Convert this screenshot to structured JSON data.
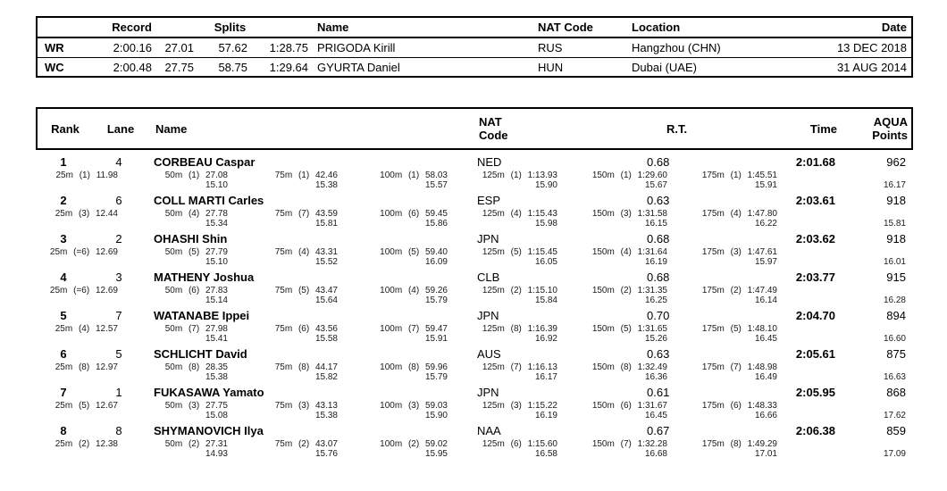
{
  "colors": {
    "background": "#ffffff",
    "text": "#000000",
    "border": "#000000"
  },
  "records_table": {
    "headers": {
      "record": "Record",
      "splits": "Splits",
      "name": "Name",
      "nat_code": "NAT Code",
      "location": "Location",
      "date": "Date"
    },
    "rows": [
      {
        "tag": "WR",
        "record": "2:00.16",
        "splits": [
          "27.01",
          "57.62",
          "1:28.75"
        ],
        "name": "PRIGODA Kirill",
        "nat_code": "RUS",
        "location": "Hangzhou (CHN)",
        "date": "13 DEC 2018"
      },
      {
        "tag": "WC",
        "record": "2:00.48",
        "splits": [
          "27.75",
          "58.75",
          "1:29.64"
        ],
        "name": "GYURTA Daniel",
        "nat_code": "HUN",
        "location": "Dubai (UAE)",
        "date": "31 AUG 2014"
      }
    ]
  },
  "results_table": {
    "headers": {
      "rank": "Rank",
      "lane": "Lane",
      "name": "Name",
      "nat_code": [
        "NAT",
        "Code"
      ],
      "rt": "R.T.",
      "time": "Time",
      "points": [
        "AQUA",
        "Points"
      ]
    },
    "rows": [
      {
        "rank": "1",
        "lane": "4",
        "name": "CORBEAU Caspar",
        "nat_code": "NED",
        "rt": "0.68",
        "time": "2:01.68",
        "points": "962",
        "splits": [
          {
            "dist": "25m",
            "pos": "(1)",
            "cum": "11.98",
            "lap": ""
          },
          {
            "dist": "50m",
            "pos": "(1)",
            "cum": "27.08",
            "lap": "15.10"
          },
          {
            "dist": "75m",
            "pos": "(1)",
            "cum": "42.46",
            "lap": "15.38"
          },
          {
            "dist": "100m",
            "pos": "(1)",
            "cum": "58.03",
            "lap": "15.57"
          },
          {
            "dist": "125m",
            "pos": "(1)",
            "cum": "1:13.93",
            "lap": "15.90"
          },
          {
            "dist": "150m",
            "pos": "(1)",
            "cum": "1:29.60",
            "lap": "15.67"
          },
          {
            "dist": "175m",
            "pos": "(1)",
            "cum": "1:45.51",
            "lap": "15.91"
          }
        ],
        "last_lap": "16.17"
      },
      {
        "rank": "2",
        "lane": "6",
        "name": "COLL MARTI Carles",
        "nat_code": "ESP",
        "rt": "0.63",
        "time": "2:03.61",
        "points": "918",
        "splits": [
          {
            "dist": "25m",
            "pos": "(3)",
            "cum": "12.44",
            "lap": ""
          },
          {
            "dist": "50m",
            "pos": "(4)",
            "cum": "27.78",
            "lap": "15.34"
          },
          {
            "dist": "75m",
            "pos": "(7)",
            "cum": "43.59",
            "lap": "15.81"
          },
          {
            "dist": "100m",
            "pos": "(6)",
            "cum": "59.45",
            "lap": "15.86"
          },
          {
            "dist": "125m",
            "pos": "(4)",
            "cum": "1:15.43",
            "lap": "15.98"
          },
          {
            "dist": "150m",
            "pos": "(3)",
            "cum": "1:31.58",
            "lap": "16.15"
          },
          {
            "dist": "175m",
            "pos": "(4)",
            "cum": "1:47.80",
            "lap": "16.22"
          }
        ],
        "last_lap": "15.81"
      },
      {
        "rank": "3",
        "lane": "2",
        "name": "OHASHI Shin",
        "nat_code": "JPN",
        "rt": "0.68",
        "time": "2:03.62",
        "points": "918",
        "splits": [
          {
            "dist": "25m",
            "pos": "(=6)",
            "cum": "12.69",
            "lap": ""
          },
          {
            "dist": "50m",
            "pos": "(5)",
            "cum": "27.79",
            "lap": "15.10"
          },
          {
            "dist": "75m",
            "pos": "(4)",
            "cum": "43.31",
            "lap": "15.52"
          },
          {
            "dist": "100m",
            "pos": "(5)",
            "cum": "59.40",
            "lap": "16.09"
          },
          {
            "dist": "125m",
            "pos": "(5)",
            "cum": "1:15.45",
            "lap": "16.05"
          },
          {
            "dist": "150m",
            "pos": "(4)",
            "cum": "1:31.64",
            "lap": "16.19"
          },
          {
            "dist": "175m",
            "pos": "(3)",
            "cum": "1:47.61",
            "lap": "15.97"
          }
        ],
        "last_lap": "16.01"
      },
      {
        "rank": "4",
        "lane": "3",
        "name": "MATHENY Joshua",
        "nat_code": "CLB",
        "rt": "0.68",
        "time": "2:03.77",
        "points": "915",
        "splits": [
          {
            "dist": "25m",
            "pos": "(=6)",
            "cum": "12.69",
            "lap": ""
          },
          {
            "dist": "50m",
            "pos": "(6)",
            "cum": "27.83",
            "lap": "15.14"
          },
          {
            "dist": "75m",
            "pos": "(5)",
            "cum": "43.47",
            "lap": "15.64"
          },
          {
            "dist": "100m",
            "pos": "(4)",
            "cum": "59.26",
            "lap": "15.79"
          },
          {
            "dist": "125m",
            "pos": "(2)",
            "cum": "1:15.10",
            "lap": "15.84"
          },
          {
            "dist": "150m",
            "pos": "(2)",
            "cum": "1:31.35",
            "lap": "16.25"
          },
          {
            "dist": "175m",
            "pos": "(2)",
            "cum": "1:47.49",
            "lap": "16.14"
          }
        ],
        "last_lap": "16.28"
      },
      {
        "rank": "5",
        "lane": "7",
        "name": "WATANABE Ippei",
        "nat_code": "JPN",
        "rt": "0.70",
        "time": "2:04.70",
        "points": "894",
        "splits": [
          {
            "dist": "25m",
            "pos": "(4)",
            "cum": "12.57",
            "lap": ""
          },
          {
            "dist": "50m",
            "pos": "(7)",
            "cum": "27.98",
            "lap": "15.41"
          },
          {
            "dist": "75m",
            "pos": "(6)",
            "cum": "43.56",
            "lap": "15.58"
          },
          {
            "dist": "100m",
            "pos": "(7)",
            "cum": "59.47",
            "lap": "15.91"
          },
          {
            "dist": "125m",
            "pos": "(8)",
            "cum": "1:16.39",
            "lap": "16.92"
          },
          {
            "dist": "150m",
            "pos": "(5)",
            "cum": "1:31.65",
            "lap": "15.26"
          },
          {
            "dist": "175m",
            "pos": "(5)",
            "cum": "1:48.10",
            "lap": "16.45"
          }
        ],
        "last_lap": "16.60"
      },
      {
        "rank": "6",
        "lane": "5",
        "name": "SCHLICHT David",
        "nat_code": "AUS",
        "rt": "0.63",
        "time": "2:05.61",
        "points": "875",
        "splits": [
          {
            "dist": "25m",
            "pos": "(8)",
            "cum": "12.97",
            "lap": ""
          },
          {
            "dist": "50m",
            "pos": "(8)",
            "cum": "28.35",
            "lap": "15.38"
          },
          {
            "dist": "75m",
            "pos": "(8)",
            "cum": "44.17",
            "lap": "15.82"
          },
          {
            "dist": "100m",
            "pos": "(8)",
            "cum": "59.96",
            "lap": "15.79"
          },
          {
            "dist": "125m",
            "pos": "(7)",
            "cum": "1:16.13",
            "lap": "16.17"
          },
          {
            "dist": "150m",
            "pos": "(8)",
            "cum": "1:32.49",
            "lap": "16.36"
          },
          {
            "dist": "175m",
            "pos": "(7)",
            "cum": "1:48.98",
            "lap": "16.49"
          }
        ],
        "last_lap": "16.63"
      },
      {
        "rank": "7",
        "lane": "1",
        "name": "FUKASAWA Yamato",
        "nat_code": "JPN",
        "rt": "0.61",
        "time": "2:05.95",
        "points": "868",
        "splits": [
          {
            "dist": "25m",
            "pos": "(5)",
            "cum": "12.67",
            "lap": ""
          },
          {
            "dist": "50m",
            "pos": "(3)",
            "cum": "27.75",
            "lap": "15.08"
          },
          {
            "dist": "75m",
            "pos": "(3)",
            "cum": "43.13",
            "lap": "15.38"
          },
          {
            "dist": "100m",
            "pos": "(3)",
            "cum": "59.03",
            "lap": "15.90"
          },
          {
            "dist": "125m",
            "pos": "(3)",
            "cum": "1:15.22",
            "lap": "16.19"
          },
          {
            "dist": "150m",
            "pos": "(6)",
            "cum": "1:31.67",
            "lap": "16.45"
          },
          {
            "dist": "175m",
            "pos": "(6)",
            "cum": "1:48.33",
            "lap": "16.66"
          }
        ],
        "last_lap": "17.62"
      },
      {
        "rank": "8",
        "lane": "8",
        "name": "SHYMANOVICH Ilya",
        "nat_code": "NAA",
        "rt": "0.67",
        "time": "2:06.38",
        "points": "859",
        "splits": [
          {
            "dist": "25m",
            "pos": "(2)",
            "cum": "12.38",
            "lap": ""
          },
          {
            "dist": "50m",
            "pos": "(2)",
            "cum": "27.31",
            "lap": "14.93"
          },
          {
            "dist": "75m",
            "pos": "(2)",
            "cum": "43.07",
            "lap": "15.76"
          },
          {
            "dist": "100m",
            "pos": "(2)",
            "cum": "59.02",
            "lap": "15.95"
          },
          {
            "dist": "125m",
            "pos": "(6)",
            "cum": "1:15.60",
            "lap": "16.58"
          },
          {
            "dist": "150m",
            "pos": "(7)",
            "cum": "1:32.28",
            "lap": "16.68"
          },
          {
            "dist": "175m",
            "pos": "(8)",
            "cum": "1:49.29",
            "lap": "17.01"
          }
        ],
        "last_lap": "17.09"
      }
    ]
  }
}
